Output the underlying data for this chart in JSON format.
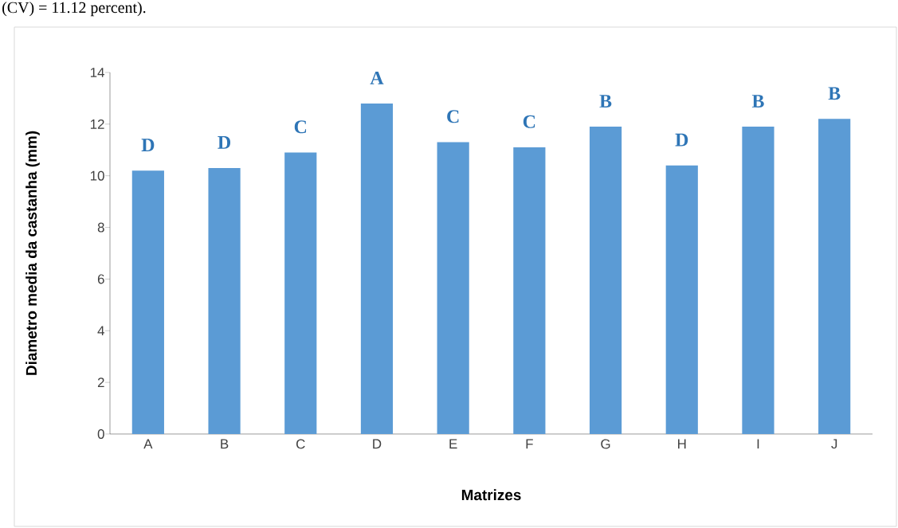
{
  "chart_data": {
    "type": "bar",
    "xlabel": "Matrizes",
    "ylabel": "Diametro media da castanha (mm)",
    "categories": [
      "A",
      "B",
      "C",
      "D",
      "E",
      "F",
      "G",
      "H",
      "I",
      "J"
    ],
    "values": [
      10.2,
      10.3,
      10.9,
      12.8,
      11.3,
      11.1,
      11.9,
      10.4,
      11.9,
      12.2
    ],
    "color": "#5b9bd5",
    "ylim": [
      0,
      14
    ],
    "yticks": [
      0,
      2,
      4,
      6,
      8,
      10,
      12,
      14
    ],
    "grid": false,
    "annotations": [
      "(CV) = 11.12 percent).",
      "D",
      "D",
      "C",
      "A",
      "C",
      "C",
      "B",
      "D",
      "B",
      "B"
    ]
  }
}
